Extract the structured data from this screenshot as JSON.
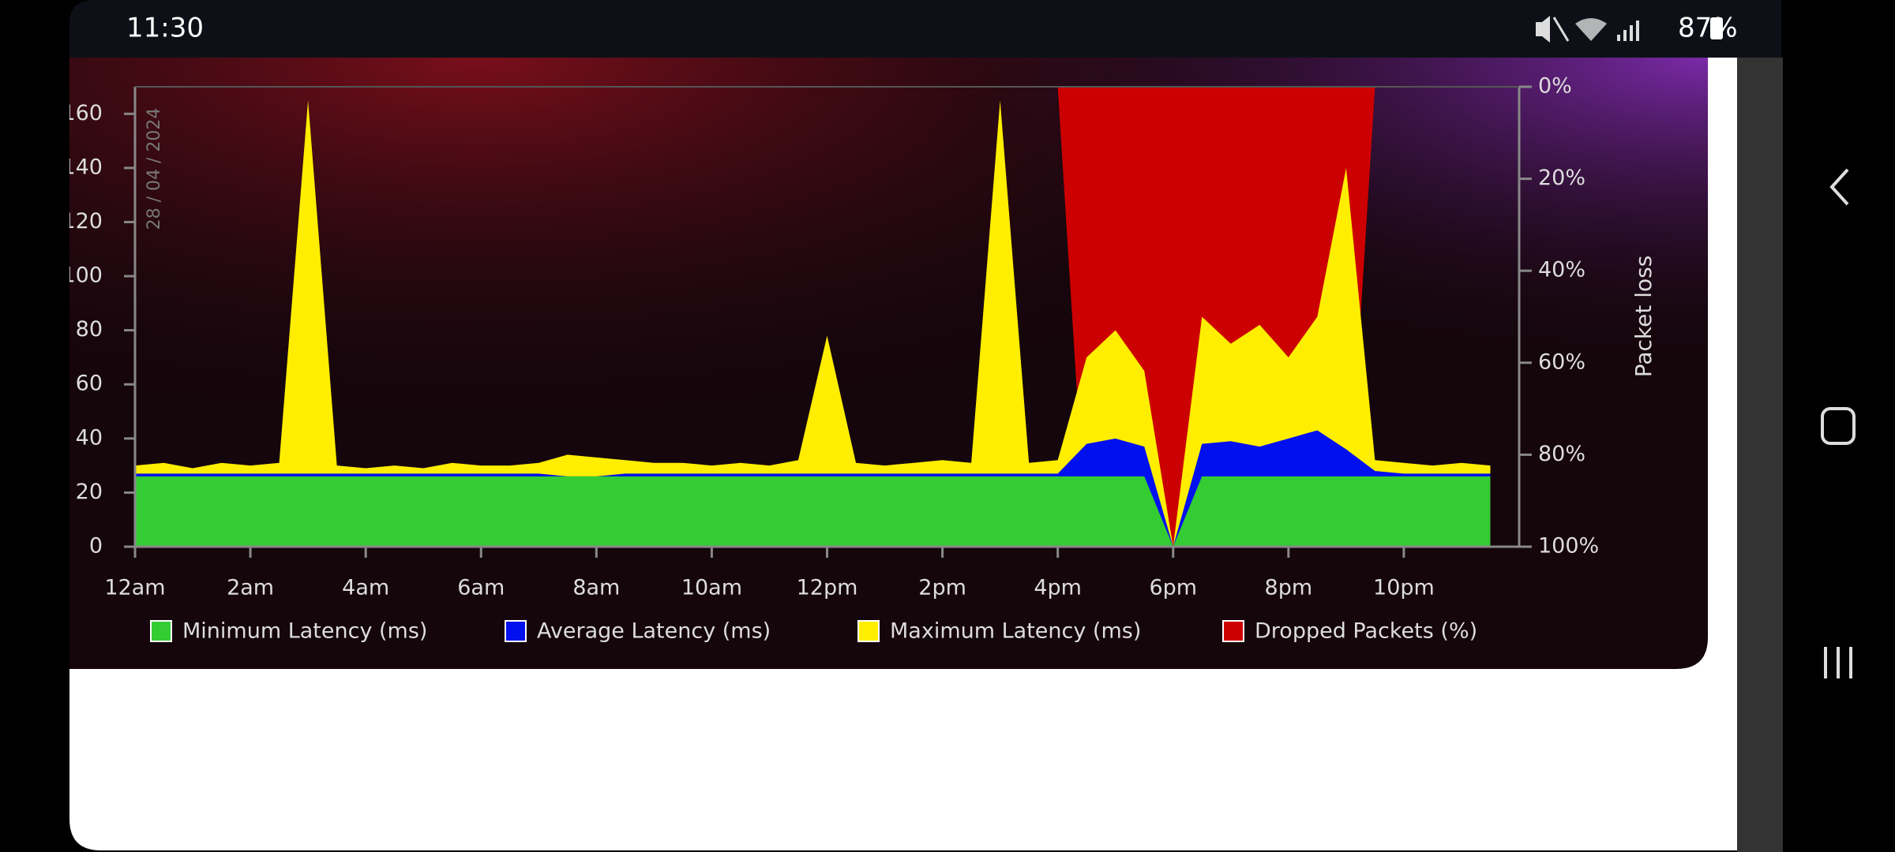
{
  "status_bar": {
    "time": "11:30",
    "battery": "87%"
  },
  "chart_data": {
    "type": "area",
    "date_label": "28 / 04 / 2024",
    "y2_label": "Packet loss",
    "x": [
      0,
      0.5,
      1,
      1.5,
      2,
      2.5,
      3,
      3.5,
      4,
      4.5,
      5,
      5.5,
      6,
      6.5,
      7,
      7.5,
      8,
      8.5,
      9,
      9.5,
      10,
      10.5,
      11,
      11.5,
      12,
      12.5,
      13,
      13.5,
      14,
      14.5,
      15,
      15.5,
      16,
      16.5,
      17,
      17.5,
      18,
      18.5,
      19,
      19.5,
      20,
      20.5,
      21,
      21.5,
      22,
      22.5,
      23,
      23.5
    ],
    "xlim": [
      0,
      24
    ],
    "xticks": [
      {
        "value": 0,
        "label": "12am"
      },
      {
        "value": 2,
        "label": "2am"
      },
      {
        "value": 4,
        "label": "4am"
      },
      {
        "value": 6,
        "label": "6am"
      },
      {
        "value": 8,
        "label": "8am"
      },
      {
        "value": 10,
        "label": "10am"
      },
      {
        "value": 12,
        "label": "12pm"
      },
      {
        "value": 14,
        "label": "2pm"
      },
      {
        "value": 16,
        "label": "4pm"
      },
      {
        "value": 18,
        "label": "6pm"
      },
      {
        "value": 20,
        "label": "8pm"
      },
      {
        "value": 22,
        "label": "10pm"
      }
    ],
    "ylim": [
      0,
      170
    ],
    "yticks": [
      0,
      20,
      40,
      60,
      80,
      100,
      120,
      140,
      160
    ],
    "y2lim": [
      100,
      0
    ],
    "y2ticks": [
      {
        "value": 0,
        "label": "0%"
      },
      {
        "value": 20,
        "label": "20%"
      },
      {
        "value": 40,
        "label": "40%"
      },
      {
        "value": 60,
        "label": "60%"
      },
      {
        "value": 80,
        "label": "80%"
      },
      {
        "value": 100,
        "label": "100%"
      }
    ],
    "series": [
      {
        "name": "Dropped Packets (%)",
        "color": "#cc0000",
        "axis": "y2",
        "values": [
          0,
          0,
          0,
          0,
          0,
          0,
          0,
          0,
          0,
          0,
          0,
          0,
          0,
          0,
          0,
          0,
          0,
          0,
          0,
          0,
          0,
          0,
          0,
          0,
          0,
          0,
          0,
          0,
          0,
          0,
          0,
          0,
          0,
          100,
          100,
          100,
          100,
          100,
          100,
          100,
          100,
          100,
          100,
          0,
          0,
          0,
          0,
          0
        ]
      },
      {
        "name": "Maximum Latency (ms)",
        "color": "#ffee00",
        "values": [
          30,
          31,
          29,
          31,
          30,
          31,
          165,
          30,
          29,
          30,
          29,
          31,
          30,
          30,
          31,
          34,
          33,
          32,
          31,
          31,
          30,
          31,
          30,
          32,
          78,
          31,
          30,
          31,
          32,
          31,
          165,
          31,
          32,
          70,
          80,
          65,
          0,
          85,
          75,
          82,
          70,
          85,
          140,
          32,
          31,
          30,
          31,
          30
        ]
      },
      {
        "name": "Average Latency (ms)",
        "color": "#0010ee",
        "values": [
          27,
          27,
          27,
          27,
          27,
          27,
          27,
          27,
          27,
          27,
          27,
          27,
          27,
          27,
          27,
          26,
          26,
          27,
          27,
          27,
          27,
          27,
          27,
          27,
          27,
          27,
          27,
          27,
          27,
          27,
          27,
          27,
          27,
          38,
          40,
          37,
          0,
          38,
          39,
          37,
          40,
          43,
          36,
          28,
          27,
          27,
          27,
          27
        ]
      },
      {
        "name": "Minimum Latency (ms)",
        "color": "#33cc33",
        "values": [
          26,
          26,
          26,
          26,
          26,
          26,
          26,
          26,
          26,
          26,
          26,
          26,
          26,
          26,
          26,
          26,
          26,
          26,
          26,
          26,
          26,
          26,
          26,
          26,
          26,
          26,
          26,
          26,
          26,
          26,
          26,
          26,
          26,
          26,
          26,
          26,
          0,
          26,
          26,
          26,
          26,
          26,
          26,
          26,
          26,
          26,
          26,
          26
        ]
      }
    ]
  }
}
